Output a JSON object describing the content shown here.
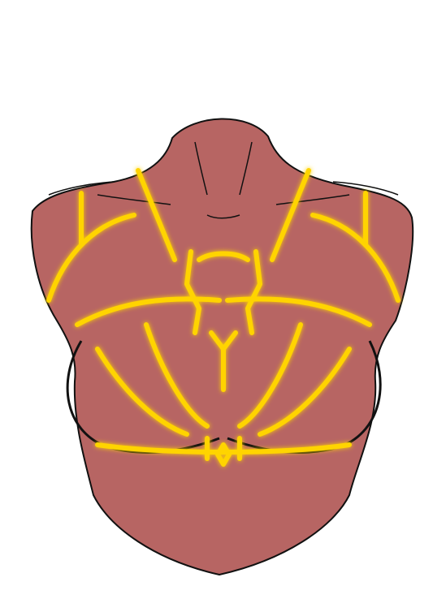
{
  "colors": {
    "background": "#ffffff",
    "skin": "#b76563",
    "outline": "#111111",
    "glow_line": "#ffd400",
    "glow_halo": "#ffcc00"
  },
  "figure": {
    "subject": "torso-bust",
    "has_harness_pattern": true
  }
}
